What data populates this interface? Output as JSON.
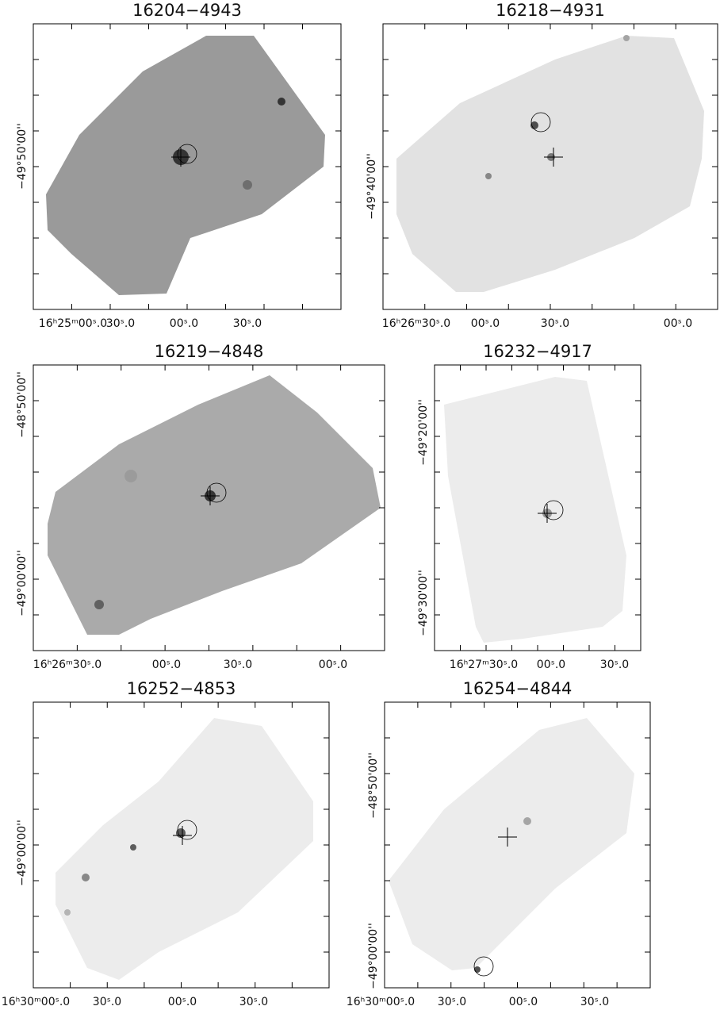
{
  "panels": [
    {
      "title": "16204−4943",
      "x_labels": [
        "16ʰ25ᵐ00ˢ.0",
        "30ˢ.0",
        "00ˢ.0",
        "30ˢ.0"
      ],
      "y_labels": [
        "−49°50'00''"
      ]
    },
    {
      "title": "16218−4931",
      "x_labels": [
        "16ʰ26ᵐ30ˢ.0",
        "00ˢ.0",
        "30ˢ.0",
        "00ˢ.0"
      ],
      "y_labels": [
        "−49°40'00''"
      ]
    },
    {
      "title": "16219−4848",
      "x_labels": [
        "16ʰ26ᵐ30ˢ.0",
        "00ˢ.0",
        "30ˢ.0",
        "00ˢ.0"
      ],
      "y_labels": [
        "−48°50'00''",
        "−49°00'00''"
      ]
    },
    {
      "title": "16232−4917",
      "x_labels": [
        "16ʰ27ᵐ30ˢ.0",
        "00ˢ.0",
        "30ˢ.0"
      ],
      "y_labels": [
        "−49°20'00''",
        "−49°30'00''"
      ]
    },
    {
      "title": "16252−4853",
      "x_labels": [
        "16ʰ30ᵐ00ˢ.0",
        "30ˢ.0",
        "00ˢ.0",
        "30ˢ.0"
      ],
      "y_labels": [
        "−49°00'00''"
      ]
    },
    {
      "title": "16254−4844",
      "x_labels": [
        "16ʰ30ᵐ00ˢ.0",
        "30ˢ.0",
        "00ˢ.0",
        "30ˢ.0"
      ],
      "y_labels": [
        "−48°50'00''",
        "−49°00'00''"
      ]
    }
  ]
}
